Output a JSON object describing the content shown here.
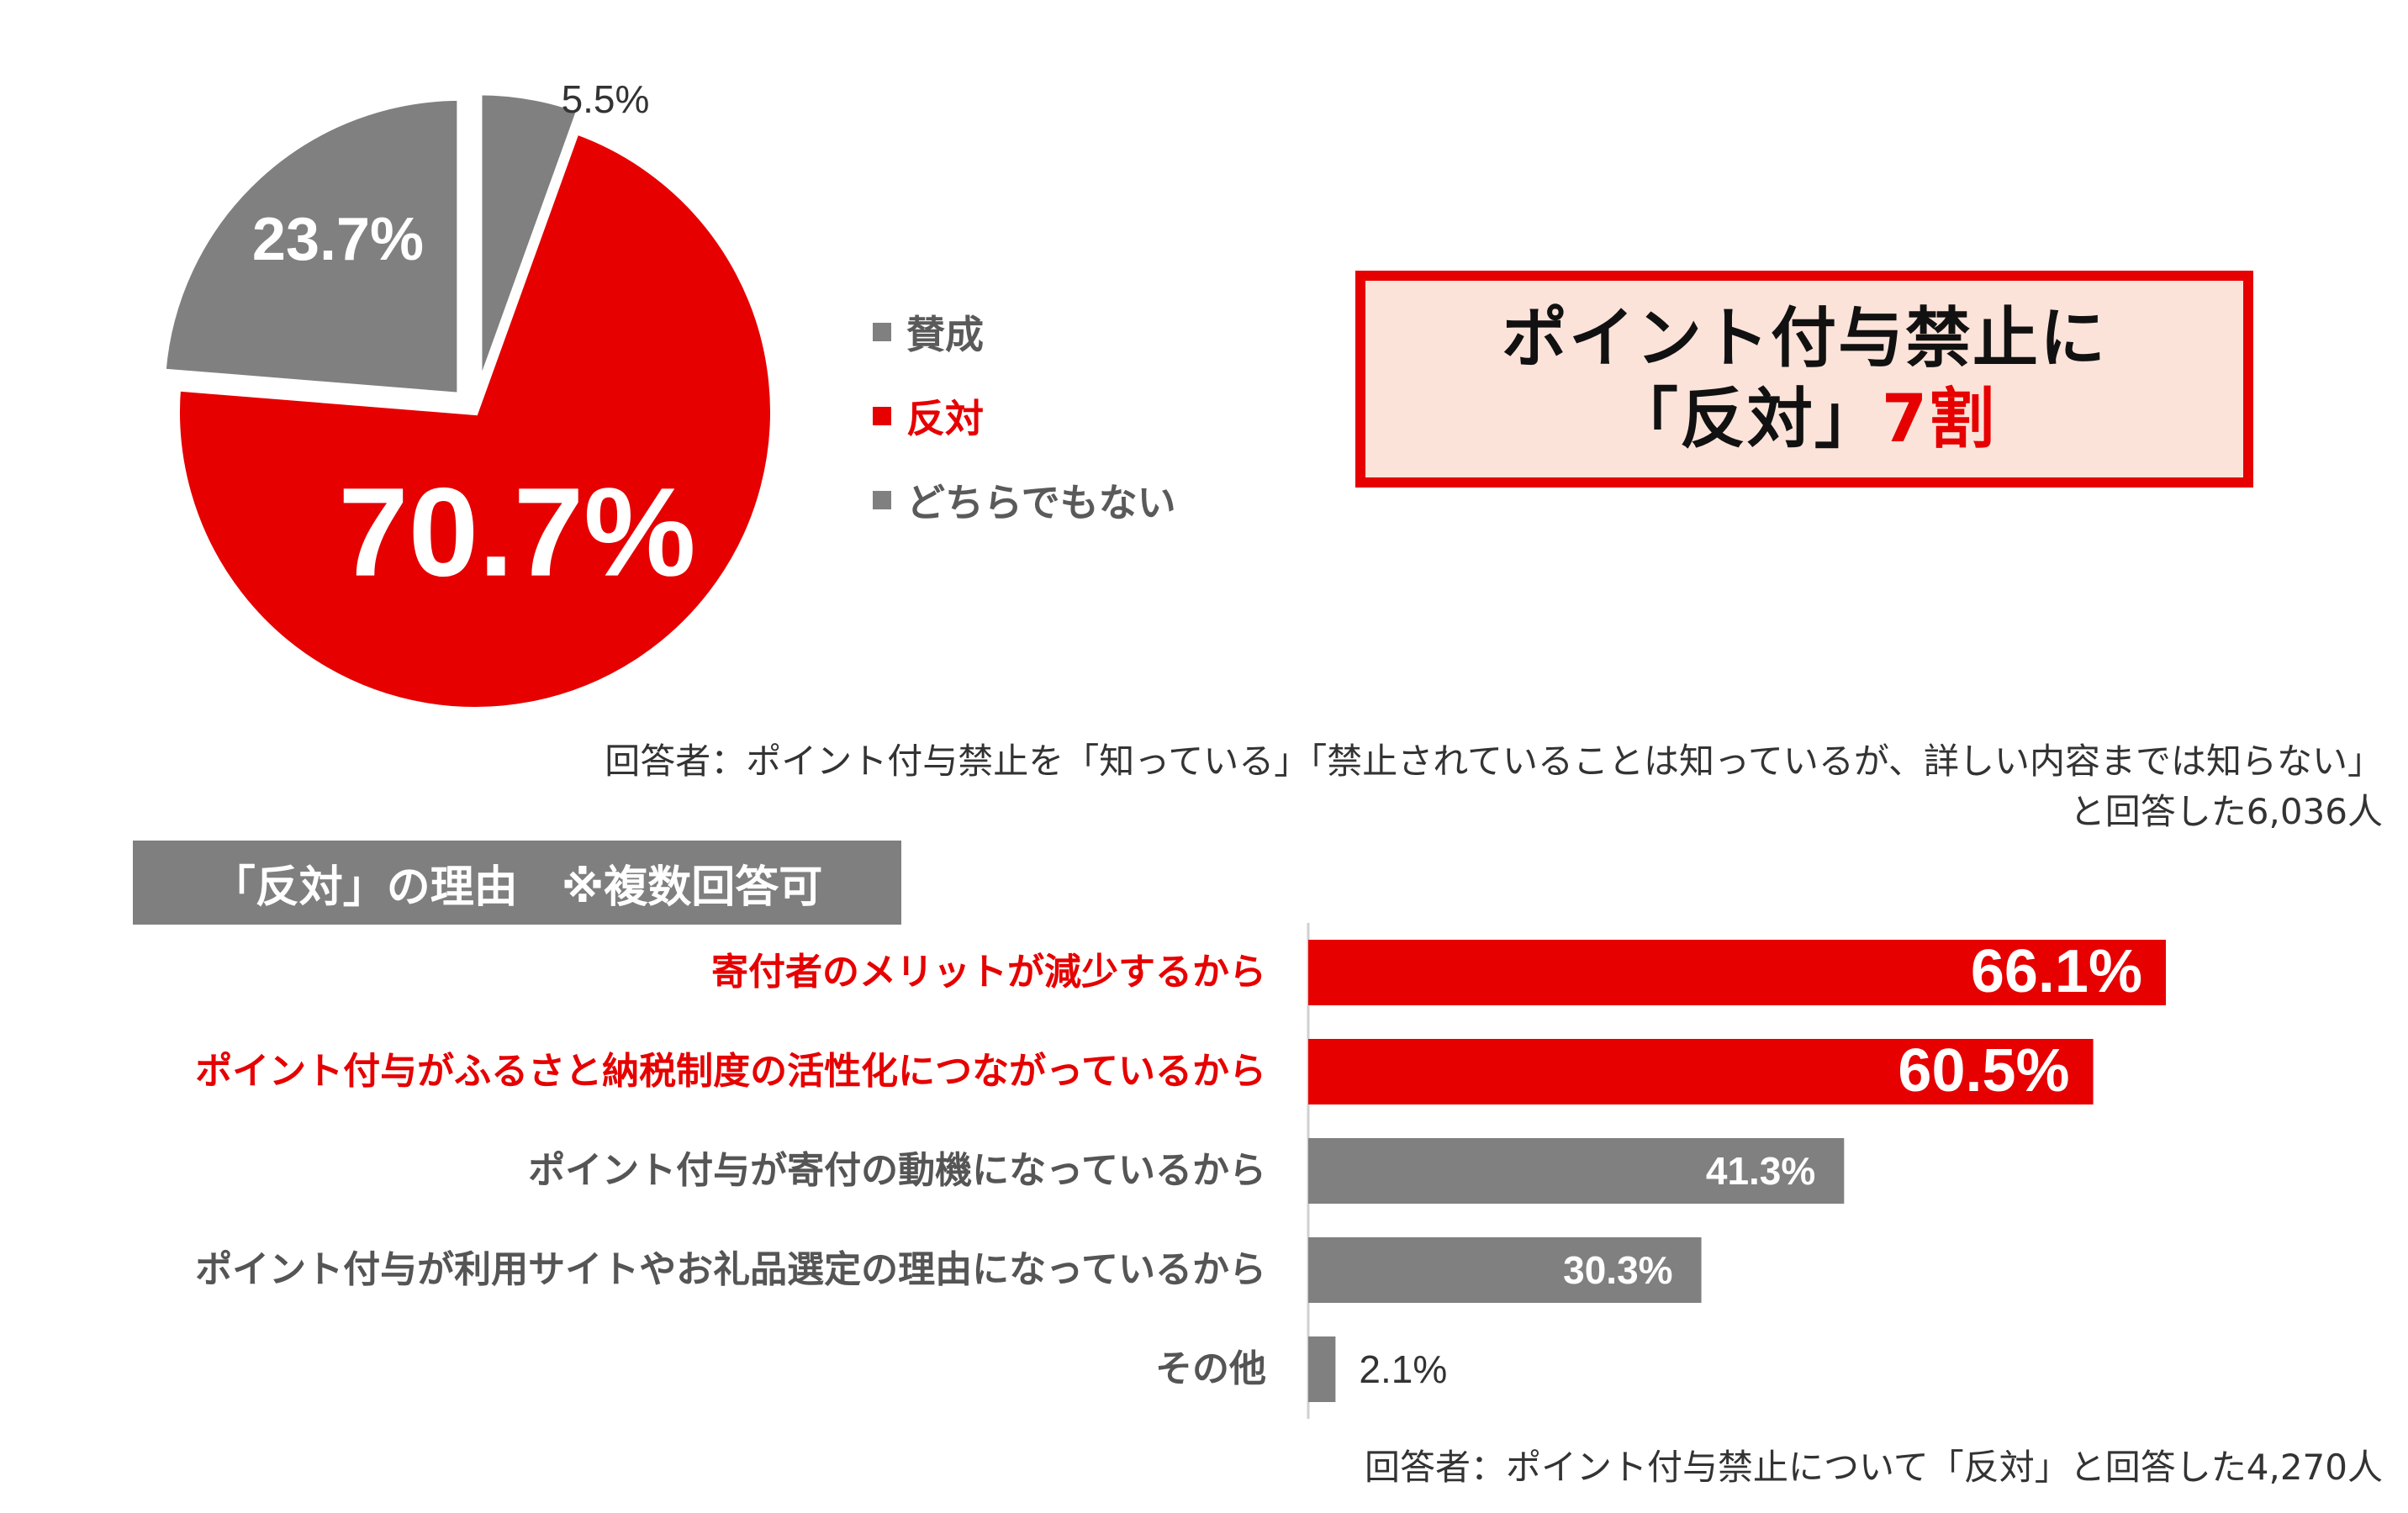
{
  "colors": {
    "red": "#e60000",
    "gray": "#808080",
    "text_gray": "#5a5a5a",
    "box_bg": "#fbe3da"
  },
  "pie": {
    "legend": [
      {
        "label": "賛成",
        "color": "#808080"
      },
      {
        "label": "反対",
        "color": "#e60000"
      },
      {
        "label": "どちらでもない",
        "color": "#808080"
      }
    ],
    "respondent_note_line1": "回答者：ポイント付与禁止を「知っている」「禁止されていることは知っているが、詳しい内容までは知らない」",
    "respondent_note_line2": "と回答した6,036人"
  },
  "headline": {
    "line1": "ポイント付与禁止に",
    "line2_prefix": "「反対」",
    "line2_accent": "7割"
  },
  "reasons": {
    "banner": "「反対」の理由　※複数回答可",
    "respondent_note": "回答者：ポイント付与禁止について「反対」と回答した4,270人"
  },
  "chart_data": [
    {
      "type": "pie",
      "slices": [
        {
          "name": "どちらでもない",
          "value": 5.5,
          "label": "5.5%",
          "color": "#808080"
        },
        {
          "name": "反対",
          "value": 70.7,
          "label": "70.7%",
          "color": "#e60000"
        },
        {
          "name": "賛成",
          "value": 23.7,
          "label": "23.7%",
          "color": "#808080"
        }
      ]
    },
    {
      "type": "bar",
      "orientation": "horizontal",
      "categories": [
        "寄付者のメリットが減少するから",
        "ポイント付与がふるさと納税制度の活性化につながっているから",
        "ポイント付与が寄付の動機になっているから",
        "ポイント付与が利用サイトやお礼品選定の理由になっているから",
        "その他"
      ],
      "values": [
        66.1,
        60.5,
        41.3,
        30.3,
        2.1
      ],
      "labels": [
        "66.1%",
        "60.5%",
        "41.3%",
        "30.3%",
        "2.1%"
      ],
      "colors": [
        "#e60000",
        "#e60000",
        "#808080",
        "#808080",
        "#808080"
      ]
    }
  ]
}
